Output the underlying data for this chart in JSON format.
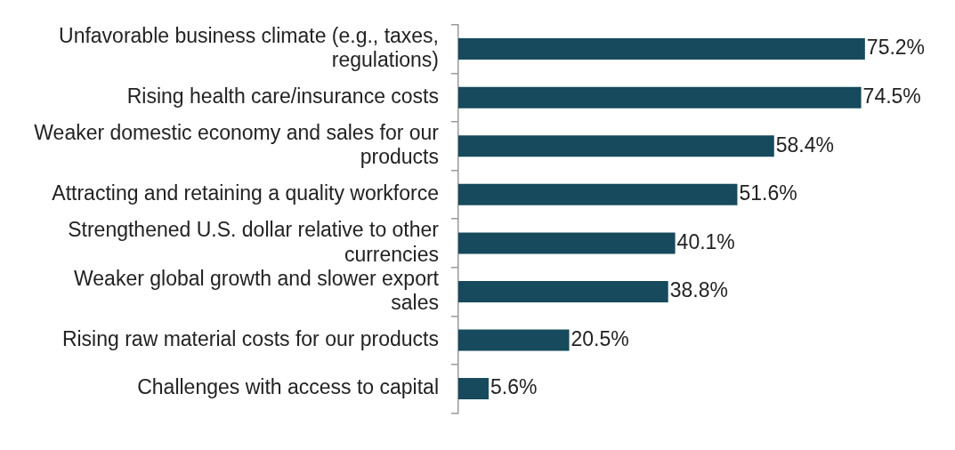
{
  "chart_data": {
    "type": "bar",
    "orientation": "horizontal",
    "tick_labels": "y",
    "categories": [
      "Unfavorable business climate (e.g., taxes, regulations)",
      "Rising health care/insurance costs",
      "Weaker domestic economy and sales for our products",
      "Attracting and retaining a quality workforce",
      "Strengthened U.S. dollar relative to other currencies",
      "Weaker global growth and slower export sales",
      "Rising raw material costs for our products",
      "Challenges with access to capital"
    ],
    "values": [
      75.2,
      74.5,
      58.4,
      51.6,
      40.1,
      38.8,
      20.5,
      5.6
    ],
    "value_labels": [
      "75.2%",
      "74.5%",
      "58.4%",
      "51.6%",
      "40.1%",
      "38.8%",
      "20.5%",
      "5.6%"
    ],
    "color": "#164a5c",
    "legend": false
  }
}
